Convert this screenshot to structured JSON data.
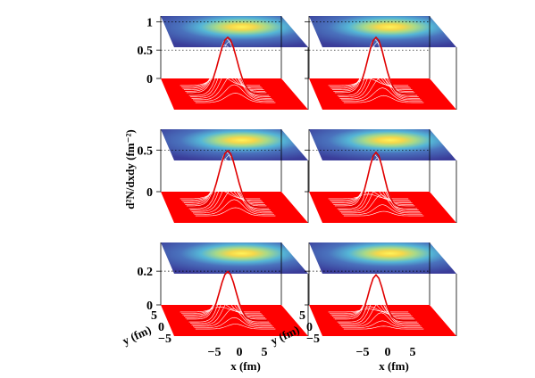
{
  "chart_data": {
    "type": "surface3d",
    "description_units": "density d2N/dxdy in fm^-2 over x,y in fm",
    "zlabel": "d²N/dxdy (fm⁻²)",
    "ylabel": "y (fm)",
    "xlabel": "x (fm)",
    "x_ticks": [
      "−5",
      "0",
      "5"
    ],
    "y_ticks": [
      "5",
      "0",
      "−5"
    ],
    "colors": {
      "surface_red": "#ff0000",
      "top_map_low": "#3a3f9a",
      "top_map_high": "#ffe84a"
    },
    "panels": [
      {
        "row": 0,
        "col": 0,
        "zlim": [
          0,
          1.1
        ],
        "z_ticks": [
          "0",
          "0.5",
          "1"
        ],
        "z_values": [
          0,
          0.5,
          1
        ],
        "peak": 1.0,
        "sigma_fm": 2.6
      },
      {
        "row": 0,
        "col": 1,
        "zlim": [
          0,
          1.1
        ],
        "z_ticks": [],
        "z_values": [
          0,
          0.5,
          1
        ],
        "peak": 1.0,
        "sigma_fm": 2.4
      },
      {
        "row": 1,
        "col": 0,
        "zlim": [
          0,
          0.75
        ],
        "z_ticks": [
          "0",
          "0.5"
        ],
        "z_values": [
          0,
          0.5
        ],
        "peak": 0.68,
        "sigma_fm": 2.5
      },
      {
        "row": 1,
        "col": 1,
        "zlim": [
          0,
          0.75
        ],
        "z_ticks": [],
        "z_values": [
          0,
          0.5
        ],
        "peak": 0.66,
        "sigma_fm": 2.2
      },
      {
        "row": 2,
        "col": 0,
        "zlim": [
          0,
          0.37
        ],
        "z_ticks": [
          "0",
          "0.2"
        ],
        "z_values": [
          0,
          0.2
        ],
        "peak": 0.29,
        "sigma_fm": 2.3
      },
      {
        "row": 2,
        "col": 1,
        "zlim": [
          0,
          0.37
        ],
        "z_ticks": [],
        "z_values": [
          0,
          0.2
        ],
        "peak": 0.27,
        "sigma_fm": 2.1
      }
    ]
  }
}
